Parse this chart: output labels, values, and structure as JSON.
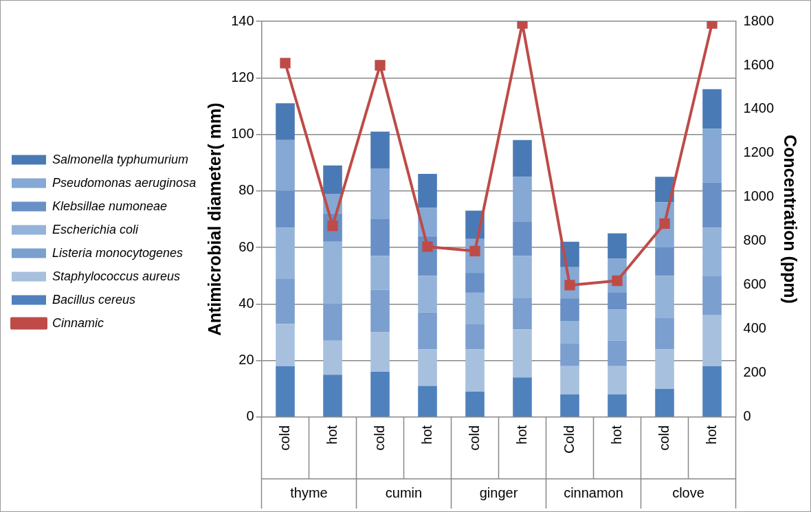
{
  "chart_data": {
    "type": "bar",
    "stacked": true,
    "categories": [
      "cold",
      "hot",
      "cold",
      "hot",
      "cold",
      "hot",
      "Cold",
      "hot",
      "cold",
      "hot"
    ],
    "annotations": [
      "thyme",
      "cumin",
      "ginger",
      "cinnamon",
      "clove"
    ],
    "ylabel": "Antimicrobial diameter( mm)",
    "y2label": "Concentration (ppm)",
    "ylim": [
      0,
      140
    ],
    "yticks": [
      0,
      20,
      40,
      60,
      80,
      100,
      120,
      140
    ],
    "y2lim": [
      0,
      1800
    ],
    "y2ticks": [
      0,
      200,
      400,
      600,
      800,
      1000,
      1200,
      1400,
      1600,
      1800
    ],
    "grid": "y",
    "legend": "left",
    "series": [
      {
        "name": "Bacillus cereus",
        "color": "#4f81bd",
        "values": [
          18,
          15,
          16,
          11,
          9,
          14,
          8,
          8,
          10,
          18
        ]
      },
      {
        "name": "Staphylococcus aureus",
        "color": "#a7c0de",
        "values": [
          15,
          12,
          14,
          13,
          15,
          17,
          10,
          10,
          14,
          18
        ]
      },
      {
        "name": "Listeria monocytogenes",
        "color": "#7b9fcf",
        "values": [
          16,
          13,
          15,
          13,
          9,
          11,
          8,
          9,
          11,
          14
        ]
      },
      {
        "name": "Escherichia coli",
        "color": "#94b3d9",
        "values": [
          18,
          22,
          12,
          13,
          11,
          15,
          8,
          11,
          15,
          17
        ]
      },
      {
        "name": "Klebsillae numoneae",
        "color": "#6890c6",
        "values": [
          13,
          10,
          13,
          14,
          7,
          12,
          8,
          6,
          10,
          16
        ]
      },
      {
        "name": "Pseudomonas aeruginosa",
        "color": "#85a8d4",
        "values": [
          18,
          7,
          18,
          10,
          12,
          16,
          11,
          12,
          16,
          19
        ]
      },
      {
        "name": "Salmonella typhumurium",
        "color": "#4a7ab5",
        "values": [
          13,
          10,
          13,
          12,
          10,
          13,
          9,
          9,
          9,
          14
        ]
      },
      {
        "name": "Cinnamic",
        "type": "line",
        "axis": "y2",
        "color": "#be4b48",
        "marker": "square",
        "values": [
          1610,
          870,
          1600,
          775,
          755,
          1790,
          600,
          620,
          880,
          1790
        ]
      }
    ]
  }
}
